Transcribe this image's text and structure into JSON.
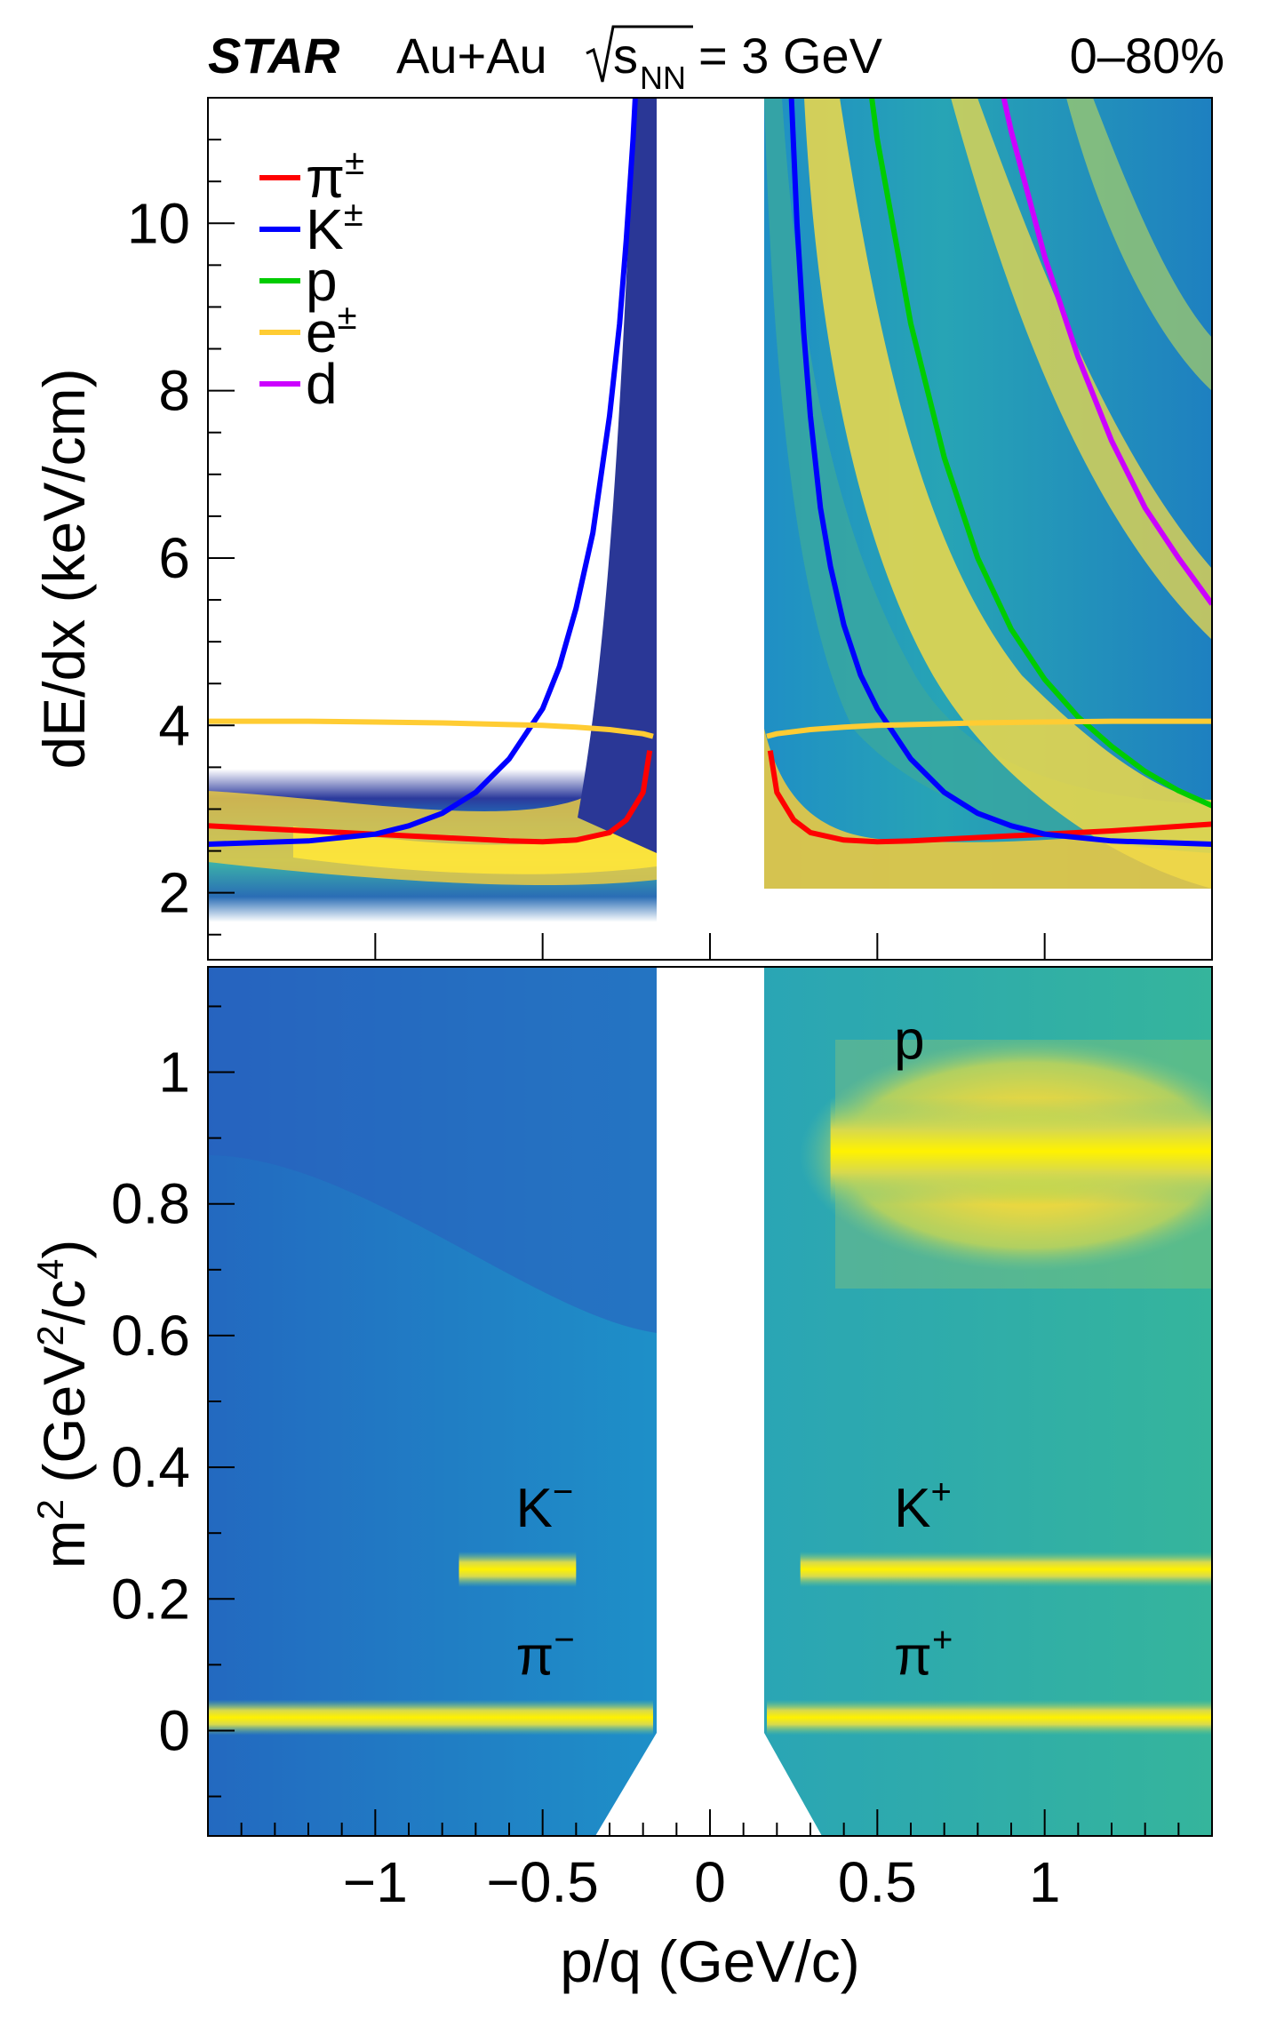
{
  "header": {
    "experiment": "STAR",
    "system": "Au+Au",
    "energy_symbol": "s",
    "energy_subscript": "NN",
    "energy_value": "= 3 GeV",
    "centrality": "0–80%"
  },
  "colors": {
    "pion": "#ff0000",
    "kaon": "#0000ff",
    "proton": "#00cc00",
    "electron": "#ffcc33",
    "deuteron": "#cc00ff",
    "density_low": "#2b2c8e",
    "density_mid": "#1f9fc8",
    "density_high": "#f5e23a",
    "density_peak": "#fff200"
  },
  "chart_data": [
    {
      "type": "heatmap",
      "name": "top-dedx",
      "title": "",
      "xlabel": "p/q (GeV/c)",
      "ylabel": "dE/dx (keV/cm)",
      "xlim": [
        -1.5,
        1.5
      ],
      "ylim": [
        1.2,
        11.5
      ],
      "yticks": [
        "2",
        "4",
        "6",
        "8",
        "10"
      ],
      "ytick_values": [
        2,
        4,
        6,
        8,
        10
      ],
      "xticks_minor_values": [
        -1,
        -0.5,
        0,
        0.5,
        1
      ],
      "legend": {
        "placement": "top-left",
        "entries": [
          {
            "key": "pion",
            "label": "π",
            "sup": "±"
          },
          {
            "key": "kaon",
            "label": "K",
            "sup": "±"
          },
          {
            "key": "proton",
            "label": "p",
            "sup": ""
          },
          {
            "key": "electron",
            "label": "e",
            "sup": "±"
          },
          {
            "key": "deuteron",
            "label": "d",
            "sup": ""
          }
        ]
      },
      "series": [
        {
          "name": "pi-neg",
          "key": "pion",
          "x": [
            -1.5,
            -1.2,
            -1.0,
            -0.8,
            -0.6,
            -0.5,
            -0.4,
            -0.3,
            -0.25,
            -0.2,
            -0.18
          ],
          "y": [
            2.8,
            2.74,
            2.7,
            2.66,
            2.62,
            2.61,
            2.63,
            2.72,
            2.87,
            3.2,
            3.7
          ]
        },
        {
          "name": "pi-pos",
          "key": "pion",
          "x": [
            0.18,
            0.2,
            0.25,
            0.3,
            0.4,
            0.5,
            0.6,
            0.8,
            1.0,
            1.2,
            1.5
          ],
          "y": [
            3.7,
            3.2,
            2.87,
            2.72,
            2.63,
            2.61,
            2.62,
            2.66,
            2.7,
            2.74,
            2.82
          ]
        },
        {
          "name": "K-neg",
          "key": "kaon",
          "x": [
            -1.5,
            -1.2,
            -1.0,
            -0.9,
            -0.8,
            -0.7,
            -0.6,
            -0.5,
            -0.45,
            -0.4,
            -0.35,
            -0.3,
            -0.27,
            -0.25,
            -0.23,
            -0.21
          ],
          "y": [
            2.58,
            2.62,
            2.7,
            2.8,
            2.95,
            3.2,
            3.6,
            4.2,
            4.7,
            5.4,
            6.3,
            7.7,
            8.8,
            9.8,
            11.0,
            12.5
          ]
        },
        {
          "name": "K-pos",
          "key": "kaon",
          "x": [
            0.24,
            0.26,
            0.28,
            0.3,
            0.33,
            0.36,
            0.4,
            0.45,
            0.5,
            0.6,
            0.7,
            0.8,
            0.9,
            1.0,
            1.2,
            1.5
          ],
          "y": [
            11.8,
            10.0,
            8.7,
            7.7,
            6.6,
            5.9,
            5.2,
            4.6,
            4.2,
            3.6,
            3.2,
            2.95,
            2.8,
            2.7,
            2.62,
            2.58
          ]
        },
        {
          "name": "p-pos",
          "key": "proton",
          "x": [
            0.45,
            0.5,
            0.55,
            0.6,
            0.7,
            0.8,
            0.9,
            1.0,
            1.1,
            1.2,
            1.3,
            1.4,
            1.5
          ],
          "y": [
            12.5,
            11.0,
            9.9,
            8.8,
            7.2,
            6.0,
            5.15,
            4.55,
            4.1,
            3.75,
            3.45,
            3.22,
            3.04
          ]
        },
        {
          "name": "e-neg",
          "key": "electron",
          "x": [
            -1.5,
            -1.2,
            -1.0,
            -0.8,
            -0.6,
            -0.5,
            -0.4,
            -0.3,
            -0.2,
            -0.17
          ],
          "y": [
            4.05,
            4.05,
            4.04,
            4.03,
            4.01,
            4.0,
            3.98,
            3.95,
            3.9,
            3.87
          ]
        },
        {
          "name": "e-pos",
          "key": "electron",
          "x": [
            0.17,
            0.2,
            0.3,
            0.4,
            0.5,
            0.6,
            0.8,
            1.0,
            1.2,
            1.5
          ],
          "y": [
            3.87,
            3.9,
            3.95,
            3.98,
            4.0,
            4.01,
            4.03,
            4.04,
            4.05,
            4.05
          ]
        },
        {
          "name": "d-pos",
          "key": "deuteron",
          "x": [
            0.85,
            0.9,
            1.0,
            1.1,
            1.2,
            1.3,
            1.4,
            1.5
          ],
          "y": [
            12.0,
            11.1,
            9.6,
            8.4,
            7.4,
            6.6,
            6.0,
            5.45
          ]
        }
      ]
    },
    {
      "type": "heatmap",
      "name": "bottom-m2",
      "title": "",
      "xlabel": "p/q (GeV/c)",
      "ylabel_main": "m",
      "ylabel_sup": "2",
      "ylabel_rest_1": " (GeV",
      "ylabel_sup2": "2",
      "ylabel_rest_2": "/c",
      "ylabel_sup3": "4",
      "ylabel_rest_3": ")",
      "xlim": [
        -1.5,
        1.5
      ],
      "ylim": [
        -0.16,
        1.16
      ],
      "xticks": [
        "−1",
        "−0.5",
        "0",
        "0.5",
        "1"
      ],
      "xtick_values": [
        -1,
        -0.5,
        0,
        0.5,
        1
      ],
      "yticks": [
        "0",
        "0.2",
        "0.4",
        "0.6",
        "0.8",
        "1"
      ],
      "ytick_values": [
        0,
        0.2,
        0.4,
        0.6,
        0.8,
        1
      ],
      "bands": [
        {
          "particle": "π",
          "charge": "−",
          "m2": 0.02,
          "x_from": -1.5,
          "x_to": -0.17
        },
        {
          "particle": "π",
          "charge": "+",
          "m2": 0.02,
          "x_from": 0.17,
          "x_to": 1.5
        },
        {
          "particle": "K",
          "charge": "−",
          "m2": 0.245,
          "x_from": -0.75,
          "x_to": -0.4
        },
        {
          "particle": "K",
          "charge": "+",
          "m2": 0.245,
          "x_from": 0.27,
          "x_to": 1.5
        },
        {
          "particle": "p",
          "charge": "",
          "m2": 0.88,
          "x_from": 0.36,
          "x_to": 1.5
        }
      ],
      "annotations": [
        {
          "text": "p",
          "sup": "",
          "x": 0.55,
          "y": 1.02
        },
        {
          "text": "K",
          "sup": "−",
          "x": -0.58,
          "y": 0.31
        },
        {
          "text": "K",
          "sup": "+",
          "x": 0.55,
          "y": 0.31
        },
        {
          "text": "π",
          "sup": "−",
          "x": -0.58,
          "y": 0.085
        },
        {
          "text": "π",
          "sup": "+",
          "x": 0.55,
          "y": 0.085
        }
      ]
    }
  ]
}
